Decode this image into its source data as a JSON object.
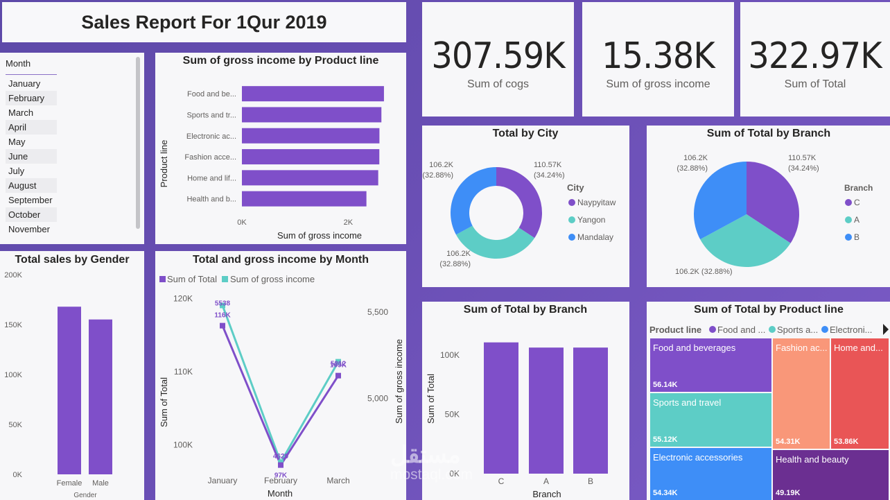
{
  "report": {
    "title": "Sales Report For 1Qur 2019"
  },
  "kpis": [
    {
      "value": "307.59K",
      "label": "Sum of cogs"
    },
    {
      "value": "15.38K",
      "label": "Sum of gross income"
    },
    {
      "value": "322.97K",
      "label": "Sum of Total"
    }
  ],
  "slicer": {
    "header": "Month",
    "items": [
      "January",
      "February",
      "March",
      "April",
      "May",
      "June",
      "July",
      "August",
      "September",
      "October",
      "November"
    ]
  },
  "colors": {
    "purple": "#7f4fc9",
    "teal": "#5dcdc6",
    "blue": "#3e8ef7",
    "salmon": "#f99779",
    "red": "#e95556",
    "darkpurple": "#6b2f91"
  },
  "chart_data": [
    {
      "type": "bar",
      "title": "Sum of gross income by Product line",
      "orientation": "horizontal",
      "categories": [
        "Food and be...",
        "Sports and tr...",
        "Electronic ac...",
        "Fashion acce...",
        "Home and lif...",
        "Health and b..."
      ],
      "values": [
        2673,
        2625,
        2588,
        2586,
        2565,
        2343
      ],
      "xlabel": "Sum of gross income",
      "ylabel": "Product line",
      "xticks": [
        "0K",
        "2K"
      ],
      "xlim": [
        0,
        3000
      ]
    },
    {
      "type": "donut",
      "title": "Total by City",
      "legend_title": "City",
      "categories": [
        "Naypyitaw",
        "Yangon",
        "Mandalay"
      ],
      "values": [
        110.57,
        106.2,
        106.2
      ],
      "labels": [
        "110.57K\n(34.24%)",
        "106.2K\n(32.88%)",
        "106.2K\n(32.88%)"
      ]
    },
    {
      "type": "pie",
      "title": "Sum of Total by Branch",
      "legend_title": "Branch",
      "categories": [
        "C",
        "A",
        "B"
      ],
      "values": [
        110.57,
        106.2,
        106.2
      ],
      "labels": [
        "110.57K\n(34.24%)",
        "106.2K (32.88%)",
        "106.2K\n(32.88%)"
      ]
    },
    {
      "type": "bar",
      "title": "Total sales by Gender",
      "categories": [
        "Female",
        "Male"
      ],
      "values": [
        167883,
        155084
      ],
      "xlabel": "Gender",
      "yticks": [
        "0K",
        "50K",
        "100K",
        "150K",
        "200K"
      ],
      "ylim": [
        0,
        200000
      ]
    },
    {
      "type": "line",
      "title": "Total and gross income by Month",
      "categories": [
        "January",
        "February",
        "March"
      ],
      "series": [
        {
          "name": "Sum of Total",
          "values": [
            116291,
            97219,
            109456
          ],
          "labels": [
            "116K",
            "97K",
            "109K"
          ],
          "axis": "left"
        },
        {
          "name": "Sum of gross income",
          "values": [
            5538,
            4629,
            5212
          ],
          "labels": [
            "5538",
            "4629",
            "5212"
          ],
          "axis": "right"
        }
      ],
      "xlabel": "Month",
      "ylabel": "Sum of Total",
      "y2label": "Sum of gross income",
      "yticks": [
        "100K",
        "110K",
        "120K"
      ],
      "y2ticks": [
        "5,000",
        "5,500"
      ],
      "ylim": [
        95000,
        121000
      ],
      "y2lim": [
        4520,
        5620
      ]
    },
    {
      "type": "bar",
      "title": "Sum of Total by Branch",
      "categories": [
        "C",
        "A",
        "B"
      ],
      "values": [
        110568,
        106200,
        106198
      ],
      "xlabel": "Branch",
      "ylabel": "Sum of Total",
      "yticks": [
        "0K",
        "50K",
        "100K"
      ],
      "ylim": [
        0,
        125000
      ]
    },
    {
      "type": "treemap",
      "title": "Sum of Total by Product line",
      "legend_title": "Product line",
      "legend_items": [
        "Food and ...",
        "Sports a...",
        "Electroni..."
      ],
      "cells": [
        {
          "name": "Food and beverages",
          "value": "56.14K"
        },
        {
          "name": "Sports and travel",
          "value": "55.12K"
        },
        {
          "name": "Electronic accessories",
          "value": "54.34K"
        },
        {
          "name": "Fashion ac...",
          "value": "54.31K"
        },
        {
          "name": "Home and...",
          "value": "53.86K"
        },
        {
          "name": "Health and beauty",
          "value": "49.19K"
        }
      ]
    }
  ],
  "watermark": {
    "arabic": "مستقل",
    "latin": "mostaql.com"
  }
}
